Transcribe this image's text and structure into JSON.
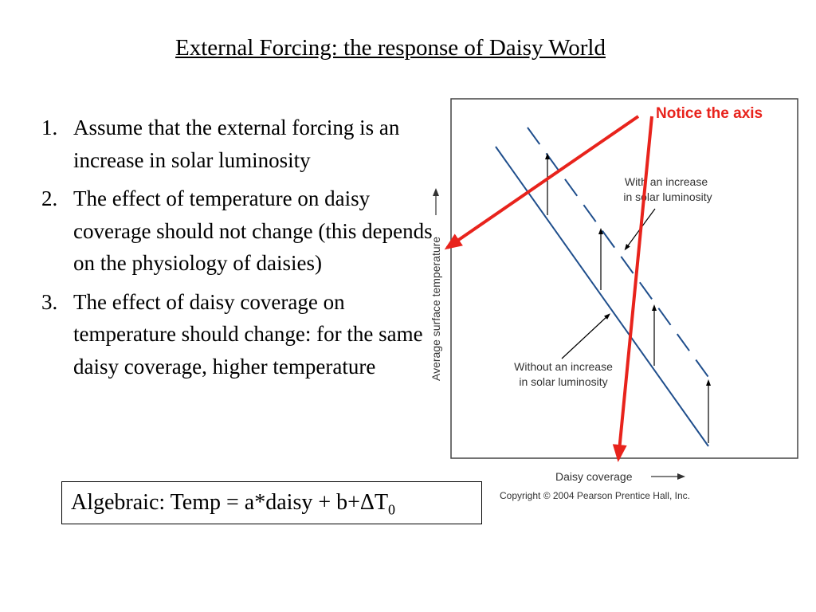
{
  "title": "External Forcing: the response of Daisy World",
  "points": [
    {
      "num": "1.",
      "text": "Assume that the external forcing is an increase in solar luminosity"
    },
    {
      "num": "2.",
      "text": "The effect of temperature on daisy coverage should not change (this depends on the physiology of daisies)"
    },
    {
      "num": "3.",
      "text": "The effect of daisy coverage on temperature should change: for the same daisy coverage, higher temperature"
    }
  ],
  "formula": {
    "prefix": "Algebraic: Temp = a*daisy + b+",
    "delta": "Δ",
    "var": "T",
    "sub": "0"
  },
  "figure": {
    "ylabel": "Average surface temperature",
    "xlabel": "Daisy coverage",
    "label_with_line1": "With an increase",
    "label_with_line2": "in solar luminosity",
    "label_without_line1": "Without an increase",
    "label_without_line2": "in solar luminosity",
    "copyright": "Copyright © 2004 Pearson Prentice Hall, Inc.",
    "line_color": "#1f4e8c",
    "axis_color": "#555555"
  },
  "annotation": {
    "text": "Notice the axis",
    "color": "#e8231c"
  }
}
